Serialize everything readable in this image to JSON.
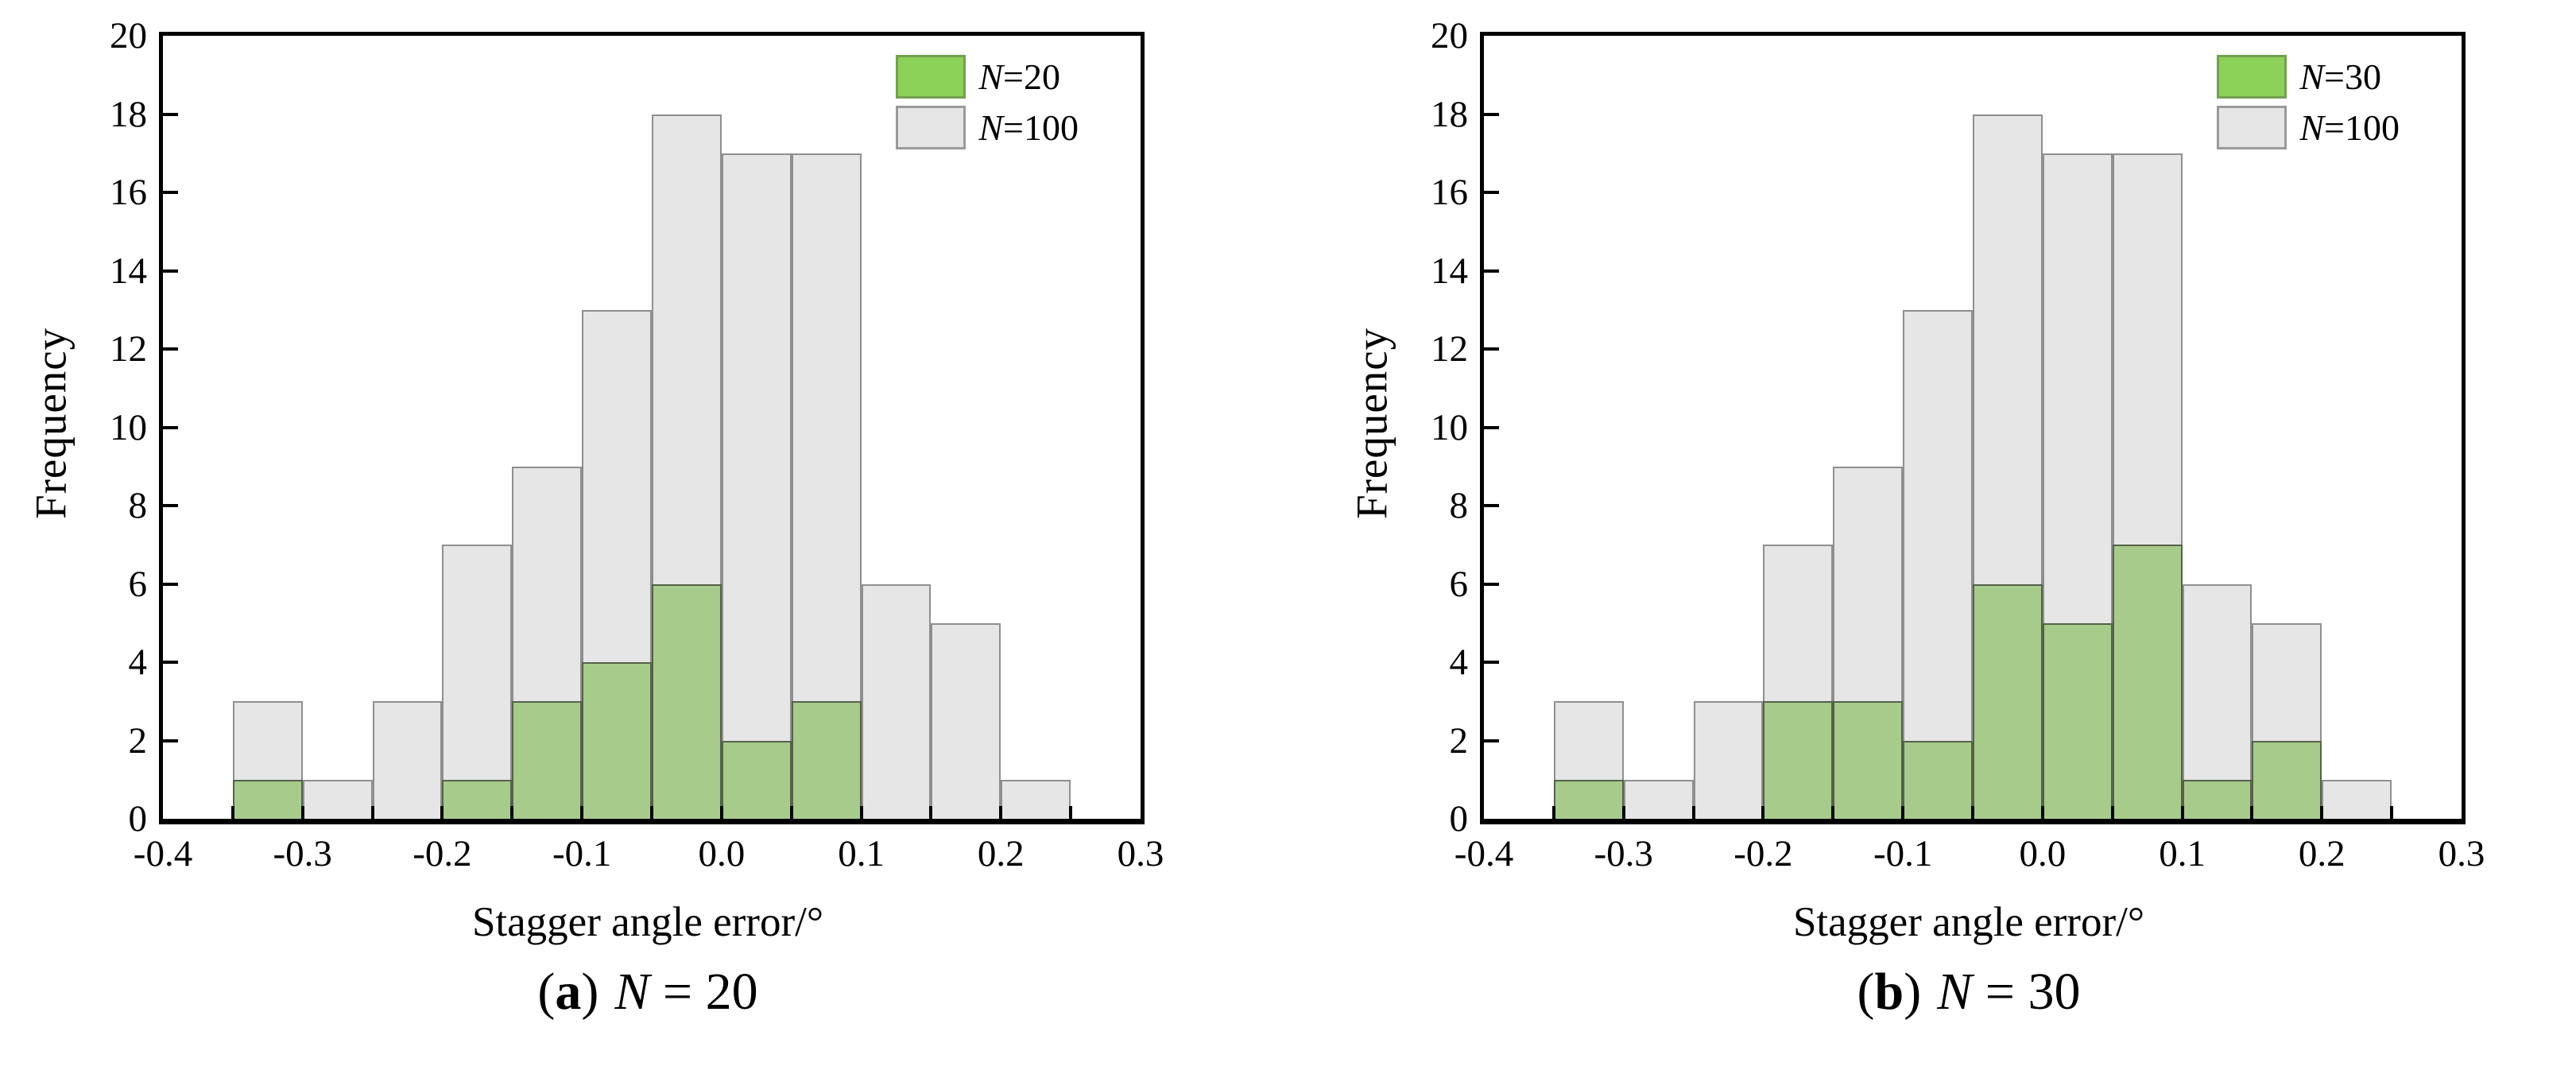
{
  "page": {
    "background": "#ffffff"
  },
  "charts": [
    {
      "ylabel": "Frequency",
      "xlabel": "Stagger angle error/°",
      "legend": {
        "items": [
          {
            "var": "N",
            "rest": "=20"
          },
          {
            "var": "N",
            "rest": "=100"
          }
        ]
      },
      "caption": {
        "open": "(",
        "bold": "a",
        "close": ")",
        "var": "N",
        "rest": " = 20"
      }
    },
    {
      "ylabel": "Frequency",
      "xlabel": "Stagger angle error/°",
      "legend": {
        "items": [
          {
            "var": "N",
            "rest": "=30"
          },
          {
            "var": "N",
            "rest": "=100"
          }
        ]
      },
      "caption": {
        "open": "(",
        "bold": "b",
        "close": ")",
        "var": "N",
        "rest": " = 30"
      }
    }
  ],
  "chart_data": [
    {
      "type": "bar",
      "title": "(a) N = 20",
      "xlabel": "Stagger angle error/°",
      "ylabel": "Frequency",
      "xlim": [
        -0.4,
        0.3
      ],
      "ylim": [
        0,
        20
      ],
      "bin_start": -0.35,
      "bin_width": 0.05,
      "x_tick_step": 0.05,
      "grid": false,
      "legend_position": "top-right",
      "x_tick_labels": [
        {
          "value": -0.4,
          "label": "-0.4"
        },
        {
          "value": -0.3,
          "label": "-0.3"
        },
        {
          "value": -0.2,
          "label": "-0.2"
        },
        {
          "value": -0.1,
          "label": "-0.1"
        },
        {
          "value": 0.0,
          "label": "0.0"
        },
        {
          "value": 0.1,
          "label": "0.1"
        },
        {
          "value": 0.2,
          "label": "0.2"
        },
        {
          "value": 0.3,
          "label": "0.3"
        }
      ],
      "y_tick_labels": [
        {
          "value": 0,
          "label": "0"
        },
        {
          "value": 2,
          "label": "2"
        },
        {
          "value": 4,
          "label": "4"
        },
        {
          "value": 6,
          "label": "6"
        },
        {
          "value": 8,
          "label": "8"
        },
        {
          "value": 10,
          "label": "10"
        },
        {
          "value": 12,
          "label": "12"
        },
        {
          "value": 14,
          "label": "14"
        },
        {
          "value": 16,
          "label": "16"
        },
        {
          "value": 18,
          "label": "18"
        },
        {
          "value": 20,
          "label": "20"
        }
      ],
      "series": [
        {
          "name": "N=20",
          "fill": "#A7CB8B",
          "edge": "#55624A",
          "legend_fill": "#8CD158",
          "legend_edge": "#74A050",
          "values": [
            1,
            0,
            0,
            1,
            3,
            4,
            6,
            2,
            3,
            0,
            0,
            0
          ]
        },
        {
          "name": "N=100",
          "fill": "#E6E6E6",
          "edge": "#8F8F8F",
          "legend_fill": "#E6E6E6",
          "legend_edge": "#9A9A9A",
          "values": [
            3,
            1,
            3,
            7,
            9,
            13,
            18,
            17,
            17,
            6,
            5,
            1
          ]
        }
      ]
    },
    {
      "type": "bar",
      "title": "(b) N = 30",
      "xlabel": "Stagger angle error/°",
      "ylabel": "Frequency",
      "xlim": [
        -0.4,
        0.3
      ],
      "ylim": [
        0,
        20
      ],
      "bin_start": -0.35,
      "bin_width": 0.05,
      "x_tick_step": 0.05,
      "grid": false,
      "legend_position": "top-right",
      "x_tick_labels": [
        {
          "value": -0.4,
          "label": "-0.4"
        },
        {
          "value": -0.3,
          "label": "-0.3"
        },
        {
          "value": -0.2,
          "label": "-0.2"
        },
        {
          "value": -0.1,
          "label": "-0.1"
        },
        {
          "value": 0.0,
          "label": "0.0"
        },
        {
          "value": 0.1,
          "label": "0.1"
        },
        {
          "value": 0.2,
          "label": "0.2"
        },
        {
          "value": 0.3,
          "label": "0.3"
        }
      ],
      "y_tick_labels": [
        {
          "value": 0,
          "label": "0"
        },
        {
          "value": 2,
          "label": "2"
        },
        {
          "value": 4,
          "label": "4"
        },
        {
          "value": 6,
          "label": "6"
        },
        {
          "value": 8,
          "label": "8"
        },
        {
          "value": 10,
          "label": "10"
        },
        {
          "value": 12,
          "label": "12"
        },
        {
          "value": 14,
          "label": "14"
        },
        {
          "value": 16,
          "label": "16"
        },
        {
          "value": 18,
          "label": "18"
        },
        {
          "value": 20,
          "label": "20"
        }
      ],
      "series": [
        {
          "name": "N=30",
          "fill": "#A7CB8B",
          "edge": "#55624A",
          "legend_fill": "#8CD158",
          "legend_edge": "#74A050",
          "values": [
            1,
            0,
            0,
            3,
            3,
            2,
            6,
            5,
            7,
            1,
            2,
            0
          ]
        },
        {
          "name": "N=100",
          "fill": "#E6E6E6",
          "edge": "#8F8F8F",
          "legend_fill": "#E6E6E6",
          "legend_edge": "#9A9A9A",
          "values": [
            3,
            1,
            3,
            7,
            9,
            13,
            18,
            17,
            17,
            6,
            5,
            1
          ]
        }
      ]
    }
  ]
}
